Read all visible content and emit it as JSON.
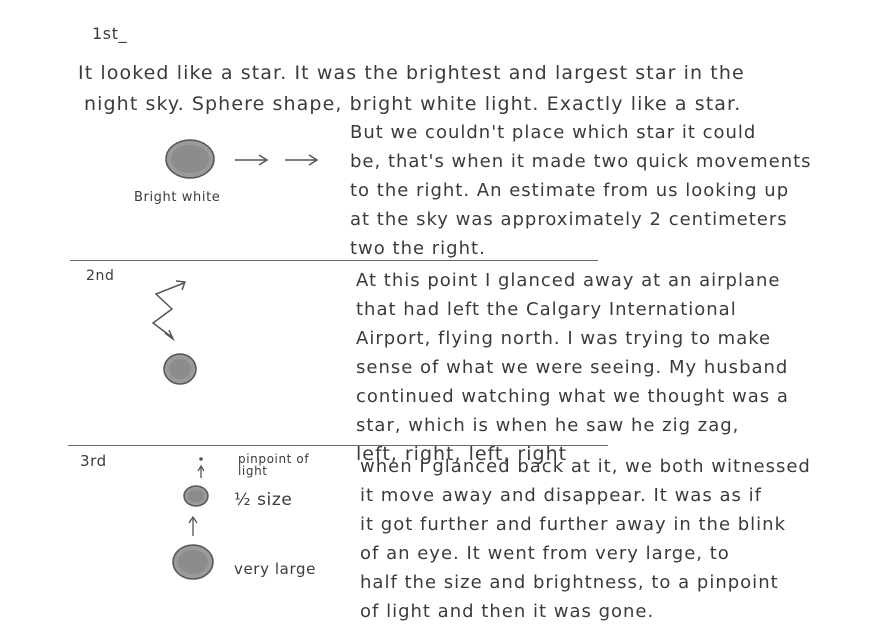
{
  "section1": {
    "label": "1st_",
    "intro_lines": [
      "It looked like a star. It was the brightest and largest star in the",
      "night sky. Sphere shape, bright white light. Exactly like a star."
    ],
    "sketch_caption": "Bright white",
    "lines": [
      "But we couldn't place which star it could",
      "be, that's when it made two quick movements",
      "to the right. An estimate from us looking up",
      "at the sky was approximately 2 centimeters",
      "two the right."
    ]
  },
  "section2": {
    "label": "2nd",
    "lines": [
      "At this point I glanced away at an airplane",
      "that had left the Calgary International",
      "Airport, flying north. I was trying to make",
      "sense of what we were seeing. My husband",
      "continued watching what we thought was a",
      "star, which is when he saw he zig zag,",
      "left, right, left, right"
    ]
  },
  "section3": {
    "label": "3rd",
    "sketch_labels": {
      "pinpoint": "pinpoint of light",
      "half": "½ size",
      "large": "very large"
    },
    "lines": [
      "when I glanced back at it, we both witnessed",
      "it move away and disappear. It was as if",
      "it got further and further away in the blink",
      "of an eye. It went from very large, to",
      "half the size and brightness, to a pinpoint",
      "of light and then it was gone."
    ]
  }
}
